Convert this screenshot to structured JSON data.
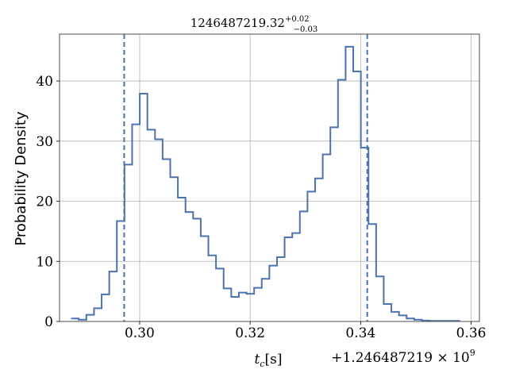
{
  "chart_data": {
    "type": "histogram-step",
    "title_main": "1246487219.32",
    "title_sup": "+0.02",
    "title_sub": "−0.03",
    "xlabel_var": "t",
    "xlabel_sub": "c",
    "xlabel_unit": "[s]",
    "ylabel": "Probability Density",
    "offset_text_main": "+1.246487219 × 10",
    "offset_text_exp": "9",
    "xlim": [
      0.2855,
      0.3615
    ],
    "ylim": [
      0,
      47.8
    ],
    "xticks": [
      0.3,
      0.32,
      0.34,
      0.36
    ],
    "xtick_labels": [
      "0.30",
      "0.32",
      "0.34",
      "0.36"
    ],
    "yticks": [
      0,
      10,
      20,
      30,
      40
    ],
    "ytick_labels": [
      "0",
      "10",
      "20",
      "30",
      "40"
    ],
    "grid": true,
    "line_color": "#4c72b0",
    "bin_start": 0.2876,
    "bin_width": 0.00138,
    "values": [
      0.5,
      0.3,
      1.1,
      2.2,
      4.5,
      8.3,
      16.7,
      26.1,
      32.8,
      37.9,
      31.9,
      30.3,
      27.0,
      24.0,
      20.6,
      18.2,
      17.1,
      14.2,
      11.0,
      8.8,
      5.5,
      4.1,
      4.8,
      4.6,
      5.6,
      7.1,
      9.3,
      10.7,
      14.0,
      14.7,
      18.3,
      21.6,
      23.8,
      27.8,
      32.3,
      40.2,
      45.7,
      41.6,
      28.9,
      16.2,
      7.5,
      2.9,
      1.6,
      1.0,
      0.5,
      0.3,
      0.15,
      0.1,
      0.1,
      0.1,
      0.1
    ],
    "vlines": [
      0.2972,
      0.3412
    ],
    "vline_style": "dashed"
  }
}
